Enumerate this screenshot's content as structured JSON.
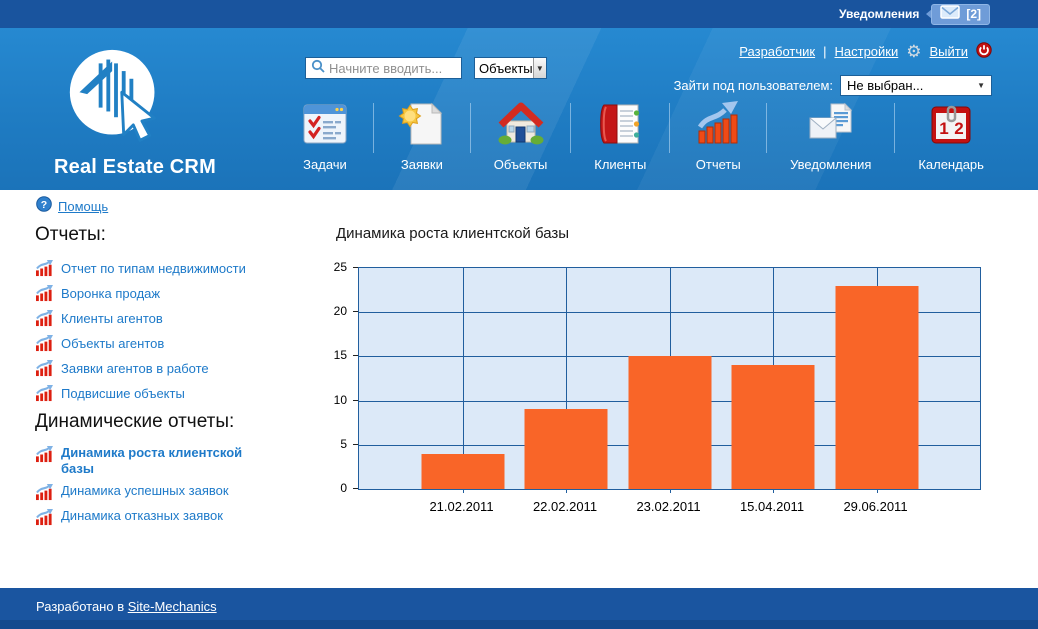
{
  "topbar": {
    "notifications_label": "Уведомления",
    "notifications_count": "[2]"
  },
  "header": {
    "logo_text": "Real Estate CRM",
    "search_placeholder": "Начните вводить...",
    "search_scope": "Объекты",
    "link_developer": "Разработчик",
    "link_separator": "|",
    "link_settings": "Настройки",
    "link_logout": "Выйти",
    "impersonate_label": "Зайти под пользователем:",
    "impersonate_value": "Не выбран...",
    "nav": [
      {
        "id": "tasks",
        "label": "Задачи",
        "icon": "tasks-icon"
      },
      {
        "id": "requests",
        "label": "Заявки",
        "icon": "requests-icon"
      },
      {
        "id": "objects",
        "label": "Объекты",
        "icon": "objects-icon"
      },
      {
        "id": "clients",
        "label": "Клиенты",
        "icon": "clients-icon"
      },
      {
        "id": "reports",
        "label": "Отчеты",
        "icon": "reports-icon"
      },
      {
        "id": "notifications",
        "label": "Уведомления",
        "icon": "notifications-icon"
      },
      {
        "id": "calendar",
        "label": "Календарь",
        "icon": "calendar-icon"
      }
    ]
  },
  "sidebar": {
    "help_label": "Помощь",
    "reports_heading": "Отчеты:",
    "reports": [
      "Отчет по типам недвижимости",
      "Воронка продаж",
      "Клиенты агентов",
      "Объекты агентов",
      "Заявки агентов в работе",
      "Подвисшие объекты"
    ],
    "dynamic_heading": "Динамические отчеты:",
    "dynamic_reports": [
      {
        "label": "Динамика роста клиентской базы",
        "active": true
      },
      {
        "label": "Динамика успешных заявок",
        "active": false
      },
      {
        "label": "Динамика отказных заявок",
        "active": false
      }
    ]
  },
  "chart_data": {
    "type": "bar",
    "title": "Динамика роста клиентской базы",
    "categories": [
      "21.02.2011",
      "22.02.2011",
      "23.02.2011",
      "15.04.2011",
      "29.06.2011"
    ],
    "values": [
      4,
      9,
      15,
      14,
      23
    ],
    "xlabel": "",
    "ylabel": "",
    "ylim": [
      0,
      25
    ],
    "yticks": [
      0,
      5,
      10,
      15,
      20,
      25
    ],
    "grid": true,
    "legend": false,
    "bar_color": "#F96528",
    "plot_bg": "#DCE9F8",
    "grid_color": "#215E9E"
  },
  "footer": {
    "text_prefix": "Разработано в",
    "link_label": "Site-Mechanics"
  },
  "colors": {
    "topbar_bg": "#19549E",
    "header_bg": "#1F7DC5",
    "footer_bg": "#1A55A0",
    "sidebar_link": "#1E7AC9",
    "bar_orange": "#F96528"
  }
}
